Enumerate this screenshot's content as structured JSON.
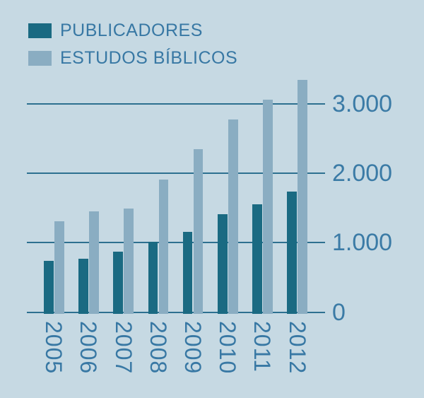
{
  "legend": {
    "items": [
      {
        "label": "PUBLICADORES"
      },
      {
        "label": "ESTUDOS BÍBLICOS"
      }
    ]
  },
  "chart_data": {
    "type": "bar",
    "title": "",
    "xlabel": "",
    "ylabel": "",
    "categories": [
      "2005",
      "2006",
      "2007",
      "2008",
      "2009",
      "2010",
      "2011",
      "2012"
    ],
    "series": [
      {
        "name": "PUBLICADORES",
        "color": "#1A6A82",
        "values": [
          740,
          770,
          865,
          1015,
          1150,
          1405,
          1555,
          1730
        ]
      },
      {
        "name": "ESTUDOS BÍBLICOS",
        "color": "#8AADC2",
        "values": [
          1305,
          1450,
          1490,
          1910,
          2340,
          2770,
          3055,
          3340
        ]
      }
    ],
    "ylim": [
      0,
      3400
    ],
    "yticks": [
      {
        "value": 0,
        "label": "0"
      },
      {
        "value": 1000,
        "label": "1.000"
      },
      {
        "value": 2000,
        "label": "2.000"
      },
      {
        "value": 3000,
        "label": "3.000"
      }
    ],
    "grid": "horizontal",
    "legend_position": "top-left",
    "colors": {
      "background": "#C6D9E3",
      "gridline": "#2D7090",
      "text": "#3878A4"
    }
  }
}
